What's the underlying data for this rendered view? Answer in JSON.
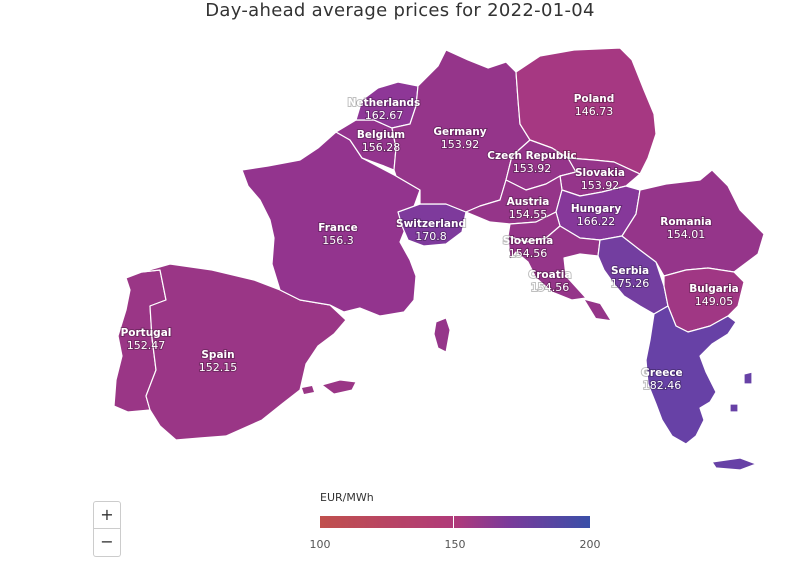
{
  "title": "Day-ahead average prices for 2022-01-04",
  "unit_label": "EUR/MWh",
  "legend": {
    "ticks": [
      100,
      150,
      200
    ],
    "min": 100,
    "max": 200,
    "colors": [
      "#c0504d",
      "#b03a7a",
      "#7a3a9a",
      "#3a4fa8"
    ]
  },
  "zoom": {
    "in_label": "+",
    "out_label": "−"
  },
  "countries": [
    {
      "name": "Netherlands",
      "value": 162.67,
      "color": "#8e3797"
    },
    {
      "name": "Belgium",
      "value": 156.28,
      "color": "#93348e"
    },
    {
      "name": "Germany",
      "value": 153.92,
      "color": "#95358a"
    },
    {
      "name": "Poland",
      "value": 146.73,
      "color": "#a63882"
    },
    {
      "name": "Czech Republic",
      "value": 153.92,
      "color": "#95358a"
    },
    {
      "name": "Slovakia",
      "value": 153.92,
      "color": "#95358a"
    },
    {
      "name": "France",
      "value": 156.3,
      "color": "#93348e"
    },
    {
      "name": "Switzerland",
      "value": 170.8,
      "color": "#7e3a9c"
    },
    {
      "name": "Austria",
      "value": 154.55,
      "color": "#953589"
    },
    {
      "name": "Hungary",
      "value": 166.22,
      "color": "#86389a"
    },
    {
      "name": "Romania",
      "value": 154.01,
      "color": "#95358a"
    },
    {
      "name": "Slovenia",
      "value": 154.56,
      "color": "#953589"
    },
    {
      "name": "Croatia",
      "value": 154.56,
      "color": "#953589"
    },
    {
      "name": "Serbia",
      "value": 175.26,
      "color": "#733ea0"
    },
    {
      "name": "Bulgaria",
      "value": 149.05,
      "color": "#a03784"
    },
    {
      "name": "Portugal",
      "value": 152.47,
      "color": "#9a3686"
    },
    {
      "name": "Spain",
      "value": 152.15,
      "color": "#9a3686"
    },
    {
      "name": "Greece",
      "value": 182.46,
      "color": "#6741a6"
    }
  ]
}
